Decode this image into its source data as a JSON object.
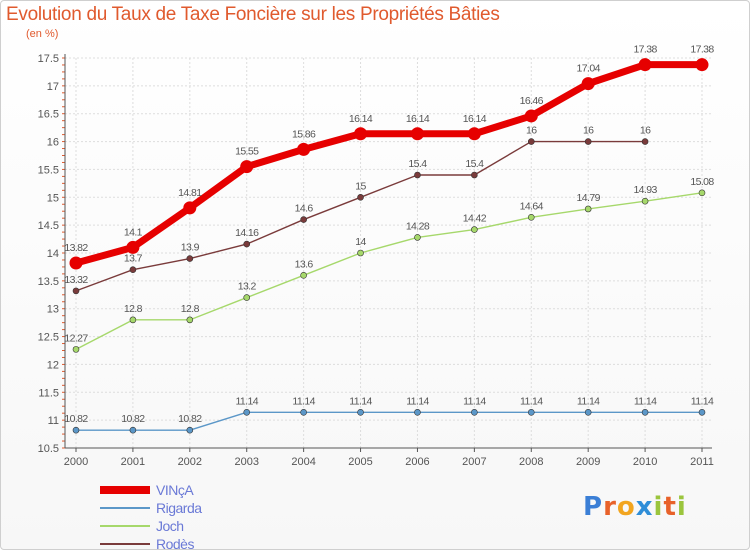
{
  "header": {
    "title": "Evolution du Taux de Taxe Foncière sur les Propriétés Bâties",
    "subtitle": "(en %)"
  },
  "logo": {
    "text": "Proxiti",
    "colors": [
      "#3b7fd6",
      "#e8622a",
      "#f2a51f",
      "#2f8ed8",
      "#9bc53d",
      "#e8622a",
      "#9bc53d"
    ]
  },
  "chart_data": {
    "type": "line",
    "x": [
      "2000",
      "2001",
      "2002",
      "2003",
      "2004",
      "2005",
      "2006",
      "2007",
      "2008",
      "2009",
      "2010",
      "2011"
    ],
    "ylim": [
      10.5,
      17.5
    ],
    "yticks": [
      "10.5",
      "11",
      "11.5",
      "12",
      "12.5",
      "13",
      "13.5",
      "14",
      "14.5",
      "15",
      "15.5",
      "16",
      "16.5",
      "17",
      "17.5"
    ],
    "grid": true,
    "legend_position": "bottom-left",
    "series": [
      {
        "name": "Rigarda",
        "color": "#5b97c8",
        "values": [
          10.82,
          10.82,
          10.82,
          11.14,
          11.14,
          11.14,
          11.14,
          11.14,
          11.14,
          11.14,
          11.14,
          11.14
        ],
        "labels": [
          "10.82",
          "10.82",
          "10.82",
          "11.14",
          "11.14",
          "11.14",
          "11.14",
          "11.14",
          "11.14",
          "11.14",
          "11.14",
          "11.14"
        ]
      },
      {
        "name": "Joch",
        "color": "#a6d86b",
        "values": [
          12.27,
          12.8,
          12.8,
          13.2,
          13.6,
          14.0,
          14.28,
          14.42,
          14.64,
          14.79,
          14.93,
          15.08
        ],
        "labels": [
          "12.27",
          "12.8",
          "12.8",
          "13.2",
          "13.6",
          "14",
          "14.28",
          "14.42",
          "14.64",
          "14.79",
          "14.93",
          "15.08"
        ]
      },
      {
        "name": "Rodès",
        "color": "#7a3b3b",
        "values": [
          13.32,
          13.7,
          13.9,
          14.16,
          14.6,
          15.0,
          15.4,
          15.4,
          16.0,
          16.0,
          16.0,
          null
        ],
        "labels": [
          "13.32",
          "13.7",
          "13.9",
          "14.16",
          "14.6",
          "15",
          "15.4",
          "15.4",
          "16",
          "16",
          "16",
          null
        ]
      },
      {
        "name": "VINçA",
        "color": "#e60000",
        "values": [
          13.82,
          14.1,
          14.81,
          15.55,
          15.86,
          16.14,
          16.14,
          16.14,
          16.46,
          17.04,
          17.38,
          17.38
        ],
        "labels": [
          "13.82",
          "14.1",
          "14.81",
          "15.55",
          "15.86",
          "16.14",
          "16.14",
          "16.14",
          "16.46",
          "17.04",
          "17.38",
          "17.38"
        ]
      }
    ],
    "legend_order": [
      "VINçA",
      "Rigarda",
      "Joch",
      "Rodès"
    ]
  }
}
